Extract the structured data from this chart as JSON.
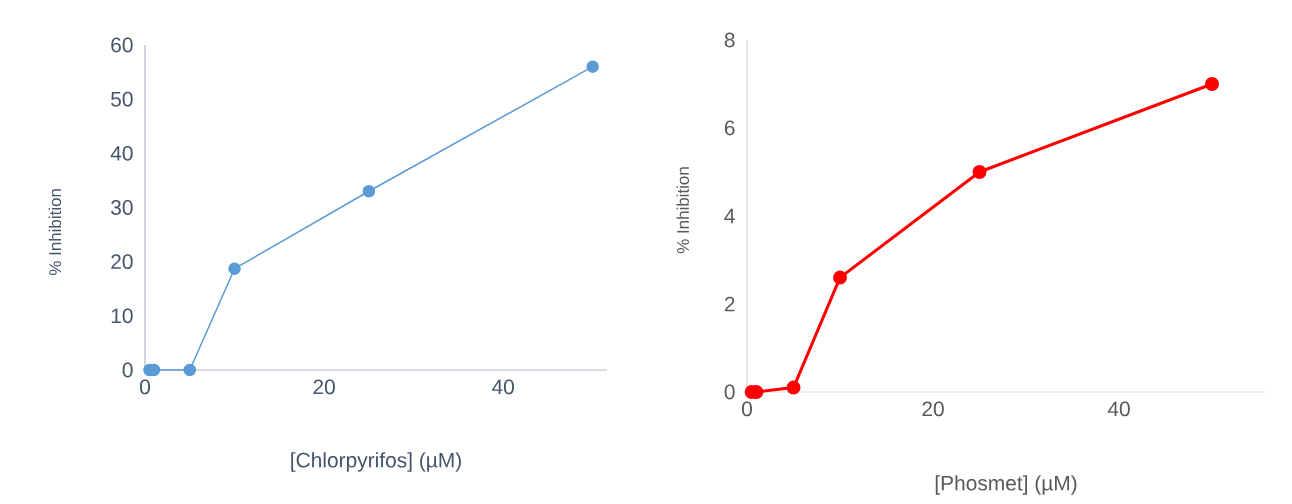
{
  "chart_data": [
    {
      "type": "line",
      "xlabel": "[Chlorpyrifos] (µM)",
      "ylabel": "% Inhibition",
      "marker": "circle",
      "series": [
        {
          "color": "#5b9bd5",
          "x": [
            0.5,
            1,
            5,
            10,
            25,
            50
          ],
          "values": [
            0,
            0,
            0,
            18.7,
            33,
            56
          ]
        }
      ],
      "xlim": [
        0,
        51.6
      ],
      "ylim": [
        0,
        60
      ],
      "xticks": [
        0,
        20,
        40
      ],
      "yticks": [
        0,
        10,
        20,
        30,
        40,
        50,
        60
      ]
    },
    {
      "type": "line",
      "xlabel": "[Phosmet] (µM)",
      "ylabel": "% Inhibition",
      "marker": "circle",
      "series": [
        {
          "color": "#ff0000",
          "x": [
            0.5,
            1,
            5,
            10,
            25,
            50
          ],
          "values": [
            0,
            0,
            0.1,
            2.6,
            5,
            7
          ]
        }
      ],
      "xlim": [
        0,
        55.7
      ],
      "ylim": [
        0,
        8
      ],
      "xticks": [
        0,
        20,
        40
      ],
      "yticks": [
        0,
        2,
        4,
        6,
        8
      ]
    }
  ]
}
